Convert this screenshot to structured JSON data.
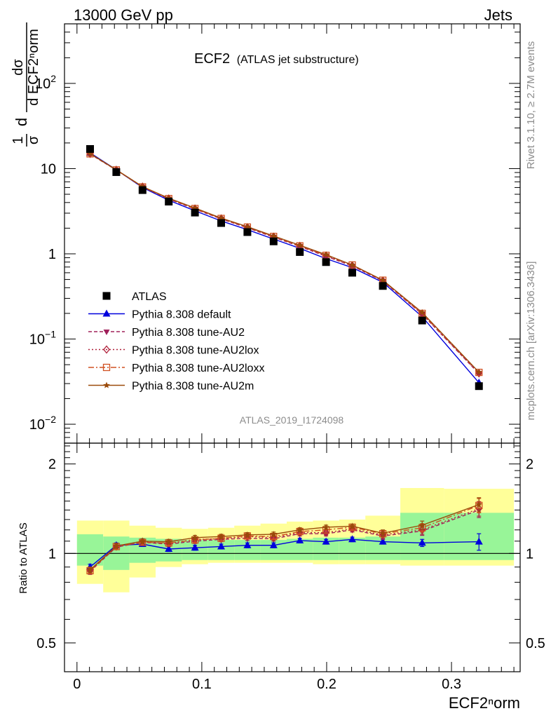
{
  "header": {
    "left": "13000 GeV pp",
    "right": "Jets"
  },
  "side_labels": {
    "rivet": "Rivet 3.1.10, ≥ 2.7M events",
    "mcplots": "mcplots.cern.ch [arXiv:1306.3436]"
  },
  "plot_title": {
    "main": "ECF2",
    "sub": "(ATLAS jet substructure)"
  },
  "watermark": "ATLAS_2019_I1724098",
  "legend": [
    {
      "label": "ATLAS",
      "color": "#000000",
      "marker": "square",
      "dash": "none"
    },
    {
      "label": "Pythia 8.308 default",
      "color": "#0000dd",
      "marker": "triangle-up",
      "dash": "solid"
    },
    {
      "label": "Pythia 8.308 tune-AU2",
      "color": "#a0205a",
      "marker": "triangle-down",
      "dash": "dashed"
    },
    {
      "label": "Pythia 8.308 tune-AU2lox",
      "color": "#b0203a",
      "marker": "diamond-open",
      "dash": "dotted"
    },
    {
      "label": "Pythia 8.308 tune-AU2loxx",
      "color": "#d05020",
      "marker": "square-open",
      "dash": "dashdot"
    },
    {
      "label": "Pythia 8.308 tune-AU2m",
      "color": "#9a4a0a",
      "marker": "star",
      "dash": "solid"
    }
  ],
  "chart_data": {
    "type": "line",
    "xlabel": "ECF2ⁿorm",
    "ylabel_main": "dσ / d ECF2ⁿorm  (1/σ)",
    "ylabel_ratio": "Ratio to ATLAS",
    "xlim": [
      -0.01,
      0.355
    ],
    "ylim_main": [
      0.006,
      500
    ],
    "ylim_ratio": [
      0.4,
      2.35
    ],
    "scale_main": "log",
    "scale_ratio": "log",
    "x_ticks": [
      {
        "v": 0,
        "label": "0"
      },
      {
        "v": 0.1,
        "label": "0.1"
      },
      {
        "v": 0.2,
        "label": "0.2"
      },
      {
        "v": 0.3,
        "label": "0.3"
      }
    ],
    "y_ticks_main": [
      {
        "v": 0.01,
        "base": "10",
        "exp": "−2"
      },
      {
        "v": 0.1,
        "base": "10",
        "exp": "−1"
      },
      {
        "v": 1,
        "base": "1",
        "exp": ""
      },
      {
        "v": 10,
        "base": "10",
        "exp": ""
      },
      {
        "v": 100,
        "base": "10",
        "exp": "2"
      }
    ],
    "y_ticks_ratio": [
      {
        "v": 0.5,
        "label": "0.5"
      },
      {
        "v": 1,
        "label": "1"
      },
      {
        "v": 2,
        "label": "2"
      }
    ],
    "bins": [
      [
        0.0,
        0.021
      ],
      [
        0.021,
        0.042
      ],
      [
        0.042,
        0.063
      ],
      [
        0.063,
        0.084
      ],
      [
        0.084,
        0.105
      ],
      [
        0.105,
        0.126
      ],
      [
        0.126,
        0.147
      ],
      [
        0.147,
        0.168
      ],
      [
        0.168,
        0.189
      ],
      [
        0.189,
        0.21
      ],
      [
        0.21,
        0.231
      ],
      [
        0.231,
        0.259
      ],
      [
        0.259,
        0.294
      ],
      [
        0.294,
        0.35
      ]
    ],
    "x": [
      0.0105,
      0.0315,
      0.0525,
      0.0735,
      0.0945,
      0.1155,
      0.1365,
      0.1575,
      0.1785,
      0.1995,
      0.2205,
      0.245,
      0.2765,
      0.322
    ],
    "data": [
      17.0,
      9.1,
      5.6,
      4.1,
      3.05,
      2.3,
      1.8,
      1.4,
      1.05,
      0.8,
      0.6,
      0.42,
      0.165,
      0.028
    ],
    "band_inner": [
      [
        0.91,
        1.16
      ],
      [
        0.88,
        1.14
      ],
      [
        0.93,
        1.13
      ],
      [
        0.94,
        1.12
      ],
      [
        0.95,
        1.11
      ],
      [
        0.95,
        1.11
      ],
      [
        0.95,
        1.11
      ],
      [
        0.95,
        1.11
      ],
      [
        0.95,
        1.12
      ],
      [
        0.95,
        1.13
      ],
      [
        0.95,
        1.13
      ],
      [
        0.95,
        1.14
      ],
      [
        0.95,
        1.37
      ],
      [
        0.95,
        1.37
      ]
    ],
    "band_outer": [
      [
        0.79,
        1.29
      ],
      [
        0.74,
        1.29
      ],
      [
        0.83,
        1.24
      ],
      [
        0.9,
        1.22
      ],
      [
        0.92,
        1.21
      ],
      [
        0.93,
        1.22
      ],
      [
        0.93,
        1.24
      ],
      [
        0.93,
        1.26
      ],
      [
        0.93,
        1.28
      ],
      [
        0.92,
        1.29
      ],
      [
        0.92,
        1.3
      ],
      [
        0.92,
        1.34
      ],
      [
        0.91,
        1.66
      ],
      [
        0.91,
        1.65
      ]
    ],
    "series": [
      {
        "name": "Pythia 8.308 default",
        "values": [
          15.3,
          9.7,
          6.0,
          4.25,
          3.2,
          2.43,
          1.92,
          1.49,
          1.16,
          0.877,
          0.688,
          0.463,
          0.183,
          0.0307
        ],
        "ratio": [
          0.9,
          1.065,
          1.075,
          1.035,
          1.045,
          1.055,
          1.065,
          1.065,
          1.105,
          1.095,
          1.115,
          1.095,
          1.085,
          1.095
        ],
        "ratio_err": [
          0.02,
          0.02,
          0.02,
          0.02,
          0.02,
          0.02,
          0.02,
          0.02,
          0.02,
          0.02,
          0.02,
          0.02,
          0.03,
          0.07
        ]
      },
      {
        "name": "Pythia 8.308 tune-AU2",
        "values": [
          14.8,
          9.6,
          6.1,
          4.4,
          3.35,
          2.57,
          2.02,
          1.57,
          1.22,
          0.935,
          0.72,
          0.48,
          0.196,
          0.0392
        ],
        "ratio": [
          0.87,
          1.05,
          1.09,
          1.075,
          1.1,
          1.115,
          1.125,
          1.12,
          1.165,
          1.165,
          1.2,
          1.145,
          1.19,
          1.4
        ],
        "ratio_err": [
          0.02,
          0.02,
          0.02,
          0.02,
          0.02,
          0.02,
          0.02,
          0.02,
          0.02,
          0.02,
          0.02,
          0.03,
          0.04,
          0.08
        ]
      },
      {
        "name": "Pythia 8.308 tune-AU2lox",
        "values": [
          14.9,
          9.65,
          6.15,
          4.45,
          3.4,
          2.6,
          2.05,
          1.59,
          1.24,
          0.95,
          0.73,
          0.485,
          0.198,
          0.0396
        ],
        "ratio": [
          0.875,
          1.055,
          1.095,
          1.08,
          1.115,
          1.12,
          1.14,
          1.13,
          1.175,
          1.175,
          1.21,
          1.155,
          1.2,
          1.415
        ],
        "ratio_err": [
          0.02,
          0.02,
          0.02,
          0.02,
          0.02,
          0.02,
          0.02,
          0.02,
          0.02,
          0.02,
          0.02,
          0.03,
          0.04,
          0.08
        ]
      },
      {
        "name": "Pythia 8.308 tune-AU2loxx",
        "values": [
          14.9,
          9.65,
          6.1,
          4.45,
          3.4,
          2.6,
          2.06,
          1.6,
          1.24,
          0.96,
          0.74,
          0.49,
          0.2,
          0.0406
        ],
        "ratio": [
          0.875,
          1.055,
          1.09,
          1.085,
          1.11,
          1.125,
          1.145,
          1.14,
          1.185,
          1.2,
          1.225,
          1.165,
          1.22,
          1.45
        ],
        "ratio_err": [
          0.02,
          0.02,
          0.02,
          0.02,
          0.02,
          0.02,
          0.02,
          0.02,
          0.02,
          0.03,
          0.02,
          0.03,
          0.04,
          0.08
        ]
      },
      {
        "name": "Pythia 8.308 tune-AU2m",
        "values": [
          15.0,
          9.7,
          6.15,
          4.5,
          3.45,
          2.63,
          2.08,
          1.62,
          1.26,
          0.98,
          0.74,
          0.49,
          0.205,
          0.0408
        ],
        "ratio": [
          0.88,
          1.06,
          1.1,
          1.095,
          1.13,
          1.14,
          1.155,
          1.16,
          1.2,
          1.225,
          1.235,
          1.17,
          1.245,
          1.46
        ],
        "ratio_err": [
          0.02,
          0.02,
          0.02,
          0.02,
          0.02,
          0.02,
          0.02,
          0.02,
          0.02,
          0.02,
          0.02,
          0.03,
          0.04,
          0.08
        ]
      }
    ]
  }
}
